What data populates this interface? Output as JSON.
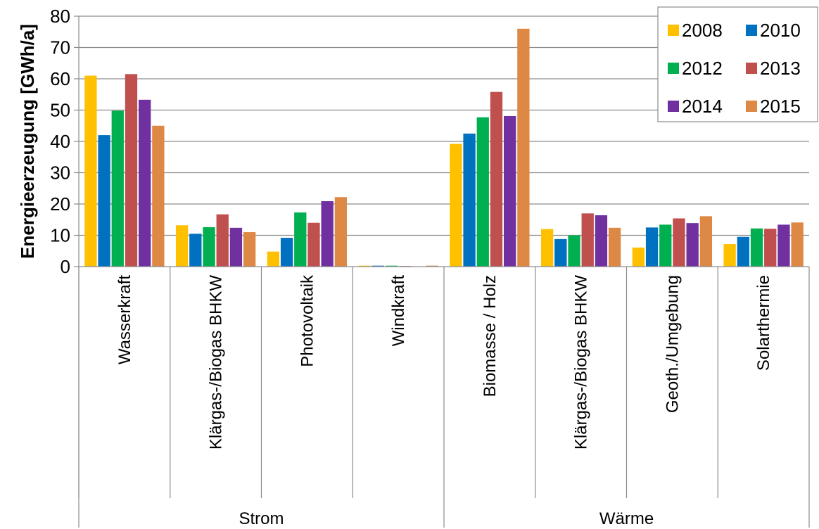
{
  "chart_data": {
    "type": "bar",
    "title": "",
    "xlabel": "",
    "ylabel": "Energieerzeugung [GWh/a]",
    "ylim": [
      0,
      80
    ],
    "yticks": [
      "0",
      "10",
      "20",
      "30",
      "40",
      "50",
      "60",
      "70",
      "80"
    ],
    "grid": true,
    "legend_position": "top-right",
    "groups": [
      {
        "label": "Strom",
        "categories": [
          0,
          1,
          2,
          3
        ]
      },
      {
        "label": "Wärme",
        "categories": [
          4,
          5,
          6,
          7
        ]
      }
    ],
    "categories": [
      "Wasserkraft",
      "Klärgas-/Biogas BHKW",
      "Photovoltaik",
      "Windkraft",
      "Biomasse / Holz",
      "Klärgas-/Biogas BHKW",
      "Geoth./Umgebung",
      "Solarthermie"
    ],
    "series": [
      {
        "name": "2008",
        "color": "#FFC000",
        "values": [
          61,
          13.2,
          4.8,
          0.3,
          39.2,
          12,
          6.1,
          7.2
        ]
      },
      {
        "name": "2010",
        "color": "#0070C0",
        "values": [
          42,
          10.5,
          9.2,
          0.3,
          42.5,
          8.8,
          12.5,
          9.5
        ]
      },
      {
        "name": "2012",
        "color": "#00B050",
        "values": [
          49.8,
          12.6,
          17.3,
          0.3,
          47.7,
          10,
          13.4,
          12.2
        ]
      },
      {
        "name": "2013",
        "color": "#C0504D",
        "values": [
          61.5,
          16.7,
          14,
          0.2,
          55.8,
          17,
          15.4,
          12.1
        ]
      },
      {
        "name": "2014",
        "color": "#7030A0",
        "values": [
          53.3,
          12.4,
          20.9,
          0.1,
          48.1,
          16.4,
          13.9,
          13.4
        ]
      },
      {
        "name": "2015",
        "color": "#DD8844",
        "values": [
          45,
          11,
          22.2,
          0.3,
          76,
          12.4,
          16.1,
          14.1
        ]
      }
    ]
  }
}
